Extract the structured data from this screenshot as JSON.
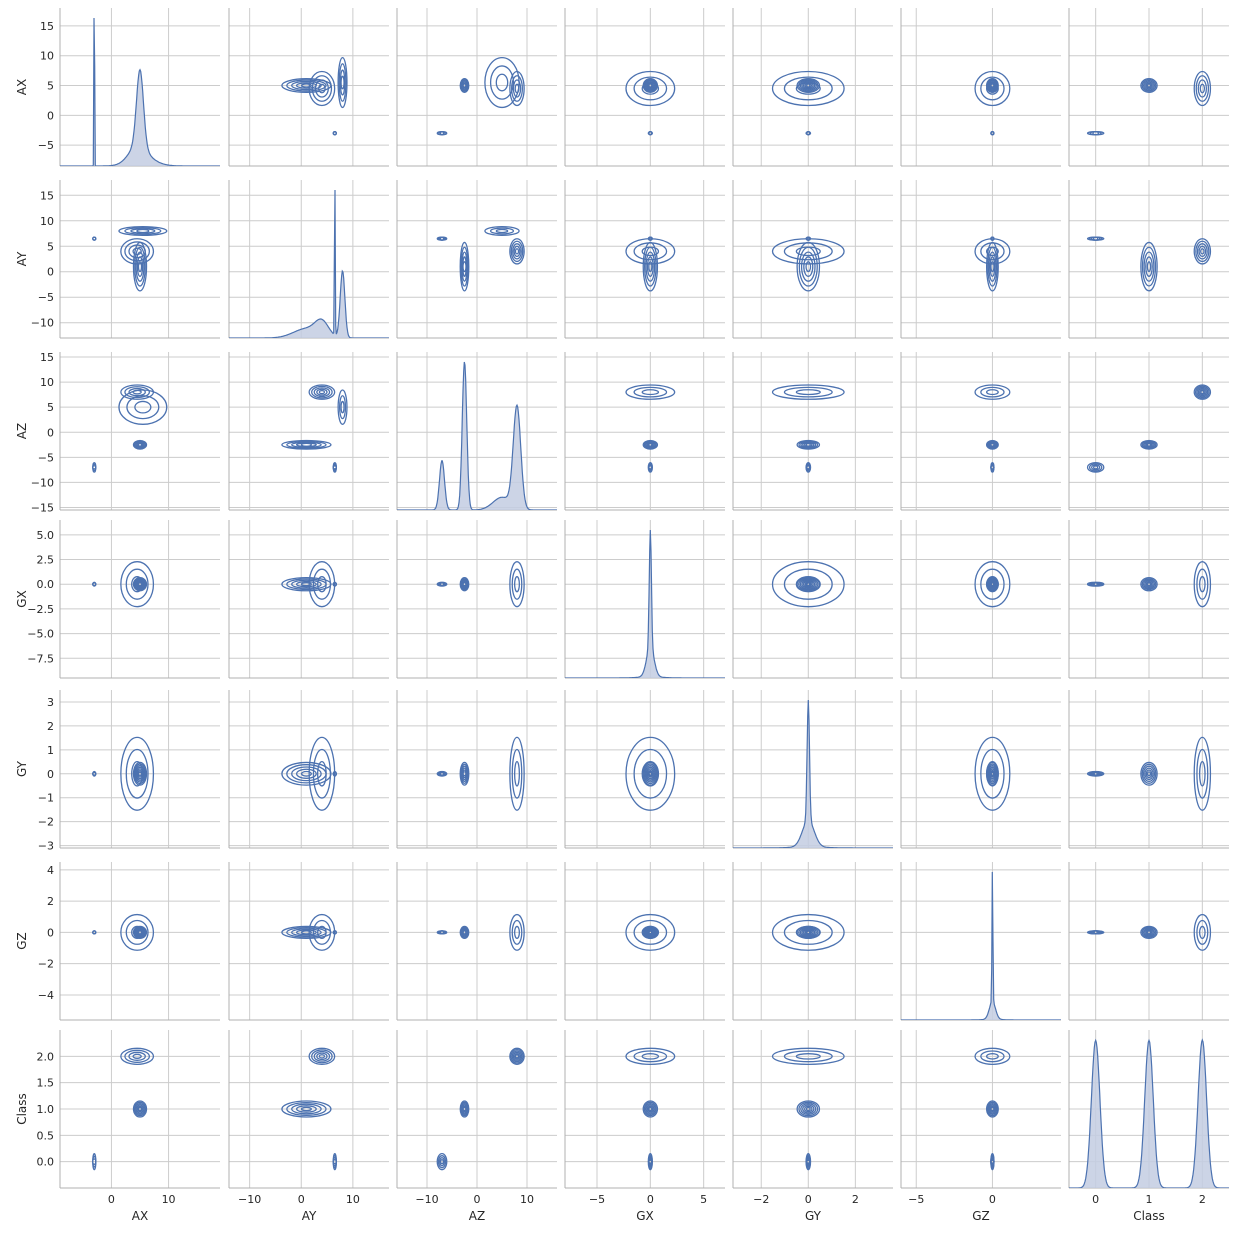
{
  "chart_data": {
    "type": "pairplot",
    "subplot_types": {
      "diagonal": "kde-density",
      "off_diagonal": "kde-contour"
    },
    "variables": [
      "AX",
      "AY",
      "AZ",
      "GX",
      "GY",
      "GZ",
      "Class"
    ],
    "row_labels": [
      "AX",
      "AY",
      "AZ",
      "GX",
      "GY",
      "GZ",
      "Class"
    ],
    "column_labels": [
      "AX",
      "AY",
      "AZ",
      "GX",
      "GY",
      "GZ",
      "Class"
    ],
    "x_ranges": [
      [
        -9,
        19
      ],
      [
        -14,
        17
      ],
      [
        -16,
        16
      ],
      [
        -8,
        7
      ],
      [
        -3.2,
        3.6
      ],
      [
        -6,
        4.5
      ],
      [
        -0.5,
        2.5
      ]
    ],
    "y_ranges": [
      [
        -8.5,
        18
      ],
      [
        -13,
        18
      ],
      [
        -15.5,
        16
      ],
      [
        -9.5,
        6.5
      ],
      [
        -3.1,
        3.5
      ],
      [
        -5.6,
        4.5
      ],
      [
        -0.5,
        2.5
      ]
    ],
    "x_ticks": [
      {
        "values": [
          0,
          10
        ],
        "labels": [
          "0",
          "10"
        ]
      },
      {
        "values": [
          -10,
          0,
          10
        ],
        "labels": [
          "−10",
          "0",
          "10"
        ]
      },
      {
        "values": [
          -10,
          0,
          10
        ],
        "labels": [
          "−10",
          "0",
          "10"
        ]
      },
      {
        "values": [
          -5,
          0,
          5
        ],
        "labels": [
          "−5",
          "0",
          "5"
        ]
      },
      {
        "values": [
          -2,
          0,
          2
        ],
        "labels": [
          "−2",
          "0",
          "2"
        ]
      },
      {
        "values": [
          -5,
          0
        ],
        "labels": [
          "−5",
          "0"
        ]
      },
      {
        "values": [
          0,
          1,
          2
        ],
        "labels": [
          "0",
          "1",
          "2"
        ]
      }
    ],
    "y_ticks": [
      {
        "values": [
          -5,
          0,
          5,
          10,
          15
        ],
        "labels": [
          "−5",
          "0",
          "5",
          "10",
          "15"
        ]
      },
      {
        "values": [
          -10,
          -5,
          0,
          5,
          10,
          15
        ],
        "labels": [
          "−10",
          "−5",
          "0",
          "5",
          "10",
          "15"
        ]
      },
      {
        "values": [
          -15,
          -10,
          -5,
          0,
          5,
          10,
          15
        ],
        "labels": [
          "−15",
          "−10",
          "−5",
          "0",
          "5",
          "10",
          "15"
        ]
      },
      {
        "values": [
          -7.5,
          -5,
          -2.5,
          0,
          2.5,
          5
        ],
        "labels": [
          "−7.5",
          "−5.0",
          "−2.5",
          "0.0",
          "2.5",
          "5.0"
        ]
      },
      {
        "values": [
          -3,
          -2,
          -1,
          0,
          1,
          2,
          3
        ],
        "labels": [
          "−3",
          "−2",
          "−1",
          "0",
          "1",
          "2",
          "3"
        ]
      },
      {
        "values": [
          -4,
          -2,
          0,
          2,
          4
        ],
        "labels": [
          "−4",
          "−2",
          "0",
          "2",
          "4"
        ]
      },
      {
        "values": [
          0,
          0.5,
          1,
          1.5,
          2
        ],
        "labels": [
          "0.0",
          "0.5",
          "1.0",
          "1.5",
          "2.0"
        ]
      }
    ],
    "clusters": {
      "AX": [
        [
          -3,
          0.05,
          0.12
        ],
        [
          5,
          0.6,
          0.45
        ],
        [
          4.5,
          1.5,
          0.2
        ],
        [
          5.5,
          2.2,
          0.16
        ]
      ],
      "AY": [
        [
          6.5,
          0.07,
          0.14
        ],
        [
          1,
          2.5,
          0.28
        ],
        [
          4,
          1.3,
          0.22
        ],
        [
          8,
          0.45,
          0.36
        ]
      ],
      "AZ": [
        [
          -7,
          0.5,
          0.13
        ],
        [
          -2.5,
          0.45,
          0.35
        ],
        [
          8,
          0.75,
          0.4
        ],
        [
          5,
          1.8,
          0.12
        ]
      ],
      "GX": [
        [
          0,
          0.1,
          0.5
        ],
        [
          0,
          0.35,
          0.45
        ],
        [
          0,
          1.2,
          0.05
        ]
      ],
      "GY": [
        [
          0,
          0.05,
          0.45
        ],
        [
          0,
          0.25,
          0.5
        ],
        [
          0,
          0.8,
          0.05
        ]
      ],
      "GZ": [
        [
          0,
          0.03,
          0.5
        ],
        [
          0,
          0.2,
          0.45
        ],
        [
          0,
          0.6,
          0.05
        ]
      ],
      "Class": [
        [
          0,
          0.08,
          0.333
        ],
        [
          1,
          0.08,
          0.333
        ],
        [
          2,
          0.08,
          0.334
        ]
      ]
    },
    "grid": true,
    "line_color": "#4c72b0",
    "fill_color": "#c3cde2"
  }
}
